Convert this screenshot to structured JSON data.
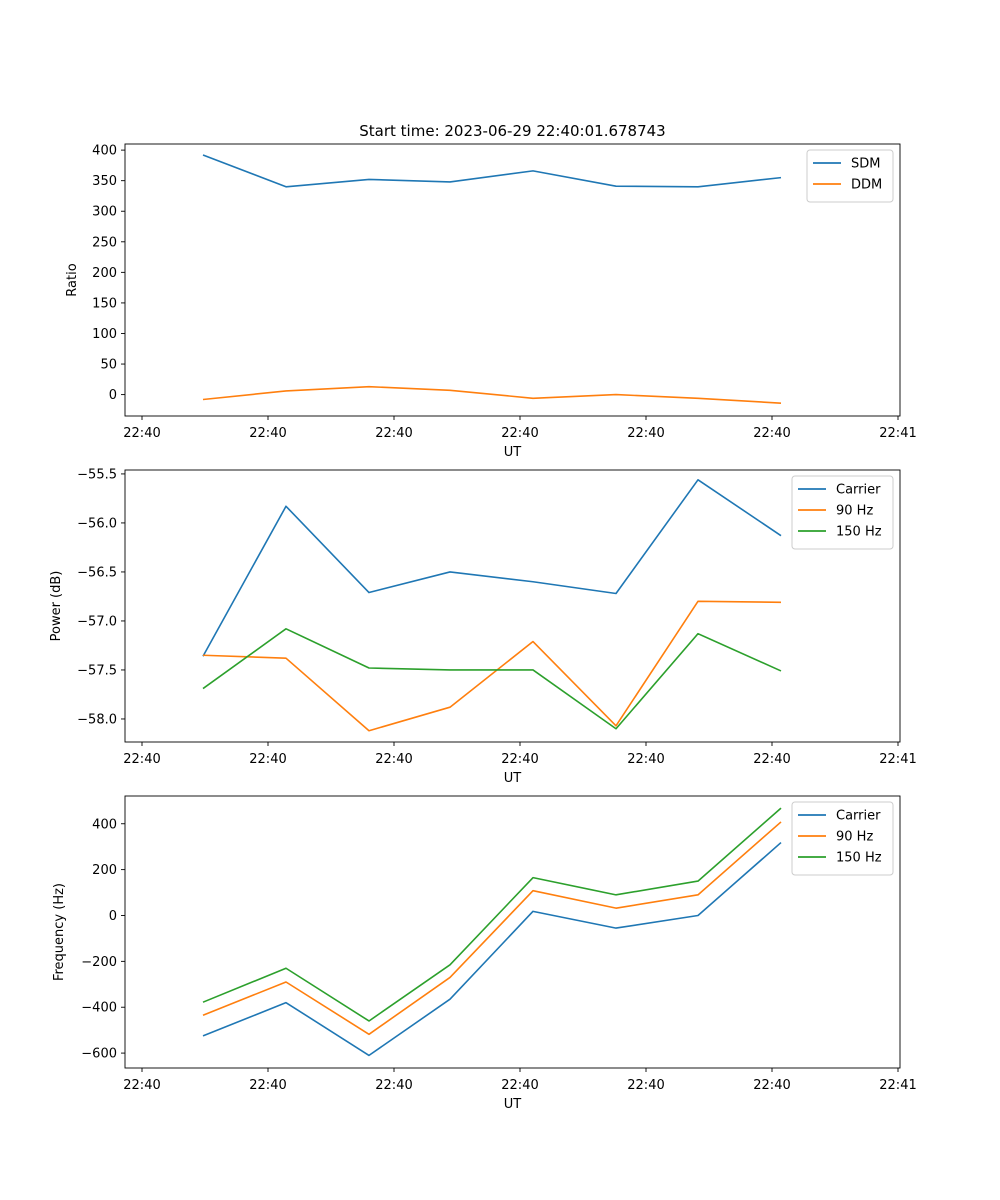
{
  "figure_title": "Start time: 2023-06-29 22:40:01.678743",
  "colors": {
    "c1": "#1f77b4",
    "c2": "#ff7f0e",
    "c3": "#2ca02c"
  },
  "chart_data": [
    {
      "type": "line",
      "title": "Start time: 2023-06-29 22:40:01.678743",
      "xlabel": "UT",
      "ylabel": "Ratio",
      "x_tick_labels": [
        "22:40",
        "22:40",
        "22:40",
        "22:40",
        "22:40",
        "22:40",
        "22:41"
      ],
      "y_ticks": [
        0,
        50,
        100,
        150,
        200,
        250,
        300,
        350,
        400
      ],
      "ylim": [
        -35,
        410
      ],
      "legend": "top-right",
      "grid": false,
      "series": [
        {
          "name": "SDM",
          "color": "#1f77b4",
          "values": [
            392,
            340,
            352,
            348,
            366,
            341,
            340,
            355
          ]
        },
        {
          "name": "DDM",
          "color": "#ff7f0e",
          "values": [
            -8,
            6,
            13,
            7,
            -6,
            0,
            -6,
            -14
          ]
        }
      ]
    },
    {
      "type": "line",
      "title": "",
      "xlabel": "UT",
      "ylabel": "Power (dB)",
      "x_tick_labels": [
        "22:40",
        "22:40",
        "22:40",
        "22:40",
        "22:40",
        "22:40",
        "22:41"
      ],
      "y_ticks": [
        -58.0,
        -57.5,
        -57.0,
        -56.5,
        -56.0,
        -55.5
      ],
      "y_tick_labels": [
        "−58.0",
        "−57.5",
        "−57.0",
        "−56.5",
        "−56.0",
        "−55.5"
      ],
      "ylim": [
        -58.235,
        -55.46
      ],
      "legend": "top-right",
      "grid": false,
      "series": [
        {
          "name": "Carrier",
          "color": "#1f77b4",
          "values": [
            -57.36,
            -55.83,
            -56.71,
            -56.5,
            -56.6,
            -56.72,
            -55.56,
            -56.13
          ]
        },
        {
          "name": "90 Hz",
          "color": "#ff7f0e",
          "values": [
            -57.35,
            -57.38,
            -58.12,
            -57.88,
            -57.21,
            -58.07,
            -56.8,
            -56.81
          ]
        },
        {
          "name": "150 Hz",
          "color": "#2ca02c",
          "values": [
            -57.69,
            -57.08,
            -57.48,
            -57.5,
            -57.5,
            -58.1,
            -57.13,
            -57.51
          ]
        }
      ]
    },
    {
      "type": "line",
      "title": "",
      "xlabel": "UT",
      "ylabel": "Frequency (Hz)",
      "x_tick_labels": [
        "22:40",
        "22:40",
        "22:40",
        "22:40",
        "22:40",
        "22:40",
        "22:41"
      ],
      "y_ticks": [
        -600,
        -400,
        -200,
        0,
        200,
        400
      ],
      "y_tick_labels": [
        "−600",
        "−400",
        "−200",
        "0",
        "200",
        "400"
      ],
      "ylim": [
        -665,
        521
      ],
      "legend": "top-right",
      "grid": false,
      "series": [
        {
          "name": "Carrier",
          "color": "#1f77b4",
          "values": [
            -525,
            -380,
            -610,
            -365,
            18,
            -55,
            0,
            318
          ]
        },
        {
          "name": "90 Hz",
          "color": "#ff7f0e",
          "values": [
            -435,
            -290,
            -518,
            -270,
            108,
            32,
            90,
            408
          ]
        },
        {
          "name": "150 Hz",
          "color": "#2ca02c",
          "values": [
            -378,
            -230,
            -460,
            -215,
            165,
            90,
            150,
            468
          ]
        }
      ]
    }
  ]
}
